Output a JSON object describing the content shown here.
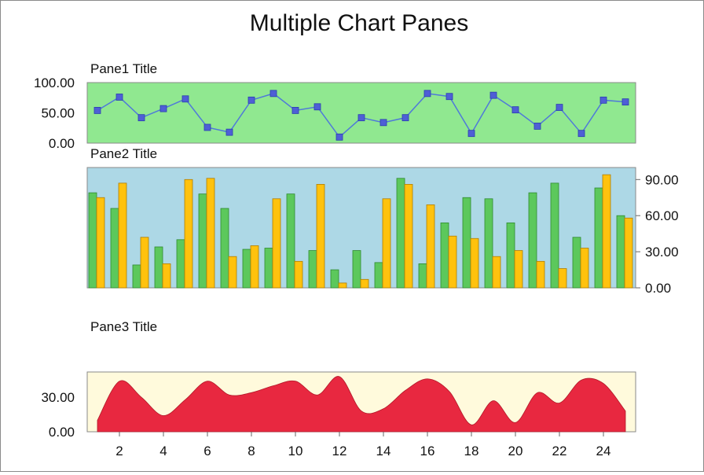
{
  "chart_title": "Multiple Chart Panes",
  "chart_data": [
    {
      "type": "line",
      "title": "Pane1 Title",
      "x": [
        1,
        2,
        3,
        4,
        5,
        6,
        7,
        8,
        9,
        10,
        11,
        12,
        13,
        14,
        15,
        16,
        17,
        18,
        19,
        20,
        21,
        22,
        23,
        24,
        25
      ],
      "series": [
        {
          "values": [
            54,
            76,
            42,
            57,
            73,
            26,
            18,
            71,
            82,
            54,
            60,
            10,
            42,
            34,
            42,
            82,
            77,
            16,
            79,
            55,
            28,
            59,
            16,
            71,
            68
          ]
        }
      ],
      "ylim": [
        0,
        100
      ],
      "y_ticks": [
        "100.00",
        "50.00",
        "0.00"
      ],
      "grid": false,
      "colors": {
        "background": "#90e890",
        "line": "#4f79d9",
        "marker": "#4f5fd6"
      }
    },
    {
      "type": "bar",
      "title": "Pane2 Title",
      "x": [
        1,
        2,
        3,
        4,
        5,
        6,
        7,
        8,
        9,
        10,
        11,
        12,
        13,
        14,
        15,
        16,
        17,
        18,
        19,
        20,
        21,
        22,
        23,
        24,
        25
      ],
      "series": [
        {
          "values": [
            79,
            66,
            19,
            34,
            40,
            78,
            66,
            32,
            33,
            78,
            31,
            15,
            31,
            21,
            91,
            20,
            54,
            75,
            74,
            54,
            79,
            87,
            42,
            83,
            60
          ],
          "color": "#5cc85c"
        },
        {
          "values": [
            75,
            87,
            42,
            20,
            90,
            91,
            26,
            35,
            74,
            22,
            86,
            4,
            7,
            74,
            86,
            69,
            43,
            41,
            26,
            31,
            22,
            16,
            33,
            94,
            58
          ],
          "color": "#ffc20e"
        }
      ],
      "ylim": [
        0,
        100
      ],
      "y_axis_side": "right",
      "y_ticks": [
        "90.00",
        "60.00",
        "30.00",
        "0.00"
      ],
      "colors": {
        "background": "#add8e6"
      }
    },
    {
      "type": "area",
      "title": "Pane3 Title",
      "x": [
        1,
        2,
        3,
        4,
        5,
        6,
        7,
        8,
        9,
        10,
        11,
        12,
        13,
        14,
        15,
        16,
        17,
        18,
        19,
        20,
        21,
        22,
        23,
        24,
        25
      ],
      "series": [
        {
          "values": [
            10,
            44,
            30,
            14,
            28,
            44,
            32,
            34,
            40,
            44,
            32,
            48,
            18,
            20,
            36,
            46,
            35,
            6,
            27,
            8,
            34,
            25,
            45,
            42,
            18
          ]
        }
      ],
      "ylim": [
        0,
        52
      ],
      "y_ticks": [
        "30.00",
        "0.00"
      ],
      "x_ticks": [
        "2",
        "4",
        "6",
        "8",
        "10",
        "12",
        "14",
        "16",
        "18",
        "20",
        "22",
        "24"
      ],
      "colors": {
        "background": "#fffadc",
        "fill": "#e82840"
      }
    }
  ]
}
